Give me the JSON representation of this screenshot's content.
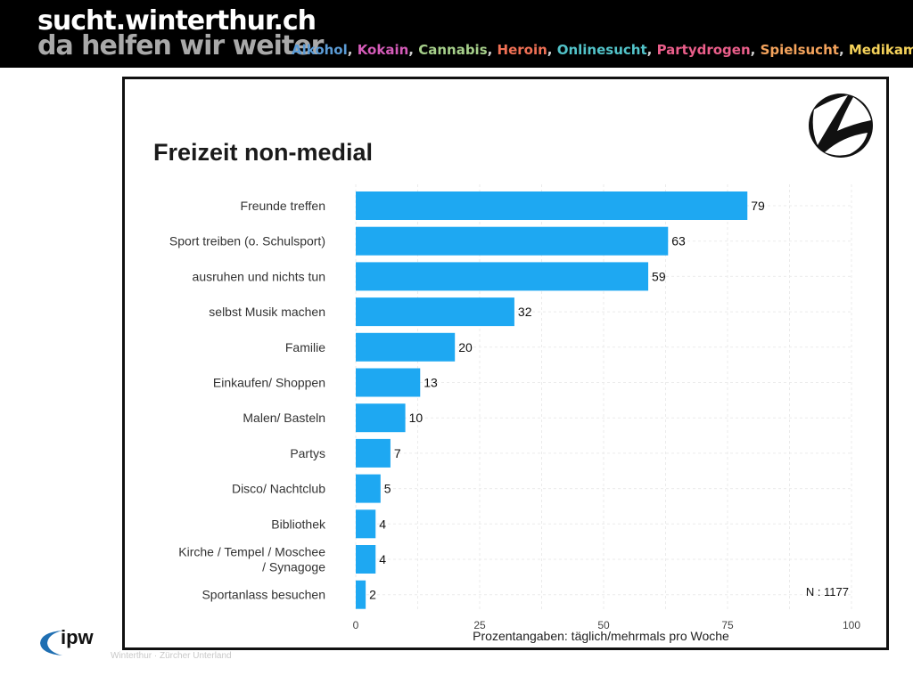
{
  "header": {
    "site_title": "sucht.winterthur.ch",
    "tagline": "da helfen wir weiter",
    "topics": [
      {
        "label": "Alkohol",
        "color": "#5b9bd5"
      },
      {
        "label": "Kokain",
        "color": "#d45bb8"
      },
      {
        "label": "Cannabis",
        "color": "#a6cf8a"
      },
      {
        "label": "Heroin",
        "color": "#f07055"
      },
      {
        "label": "Onlinesucht",
        "color": "#52c3c9"
      },
      {
        "label": "Partydrogen",
        "color": "#ea5e8a"
      },
      {
        "label": "Spielsucht",
        "color": "#f4a35c"
      },
      {
        "label": "Medikamente",
        "color": "#f5d25a"
      }
    ]
  },
  "footer": {
    "logo_text": "ipw",
    "faded_text": "Winterthur · Zürcher Unterland"
  },
  "chart_data": {
    "type": "bar",
    "orientation": "horizontal",
    "title": "Freizeit non-medial",
    "xlabel": "Prozentangaben: täglich/mehrmals pro Woche",
    "ylabel": "",
    "categories": [
      "Freunde treffen",
      "Sport treiben (o. Schulsport)",
      "ausruhen und nichts tun",
      "selbst Musik machen",
      "Familie",
      "Einkaufen/ Shoppen",
      "Malen/ Basteln",
      "Partys",
      "Disco/ Nachtclub",
      "Bibliothek",
      "Kirche / Tempel / Moschee / Synagoge",
      "Sportanlass besuchen"
    ],
    "category_lines": [
      [
        "Freunde treffen"
      ],
      [
        "Sport treiben (o. Schulsport)"
      ],
      [
        "ausruhen und nichts tun"
      ],
      [
        "selbst Musik machen"
      ],
      [
        "Familie"
      ],
      [
        "Einkaufen/ Shoppen"
      ],
      [
        "Malen/ Basteln"
      ],
      [
        "Partys"
      ],
      [
        "Disco/ Nachtclub"
      ],
      [
        "Bibliothek"
      ],
      [
        "Kirche / Tempel / Moschee",
        "/ Synagoge"
      ],
      [
        "Sportanlass besuchen"
      ]
    ],
    "values": [
      79,
      63,
      59,
      32,
      20,
      13,
      10,
      7,
      5,
      4,
      4,
      2
    ],
    "xlim": [
      0,
      100
    ],
    "xticks": [
      0,
      25,
      50,
      75,
      100
    ],
    "bar_color": "#1ea8f2",
    "grid": true,
    "annotation": "N : 1177"
  }
}
